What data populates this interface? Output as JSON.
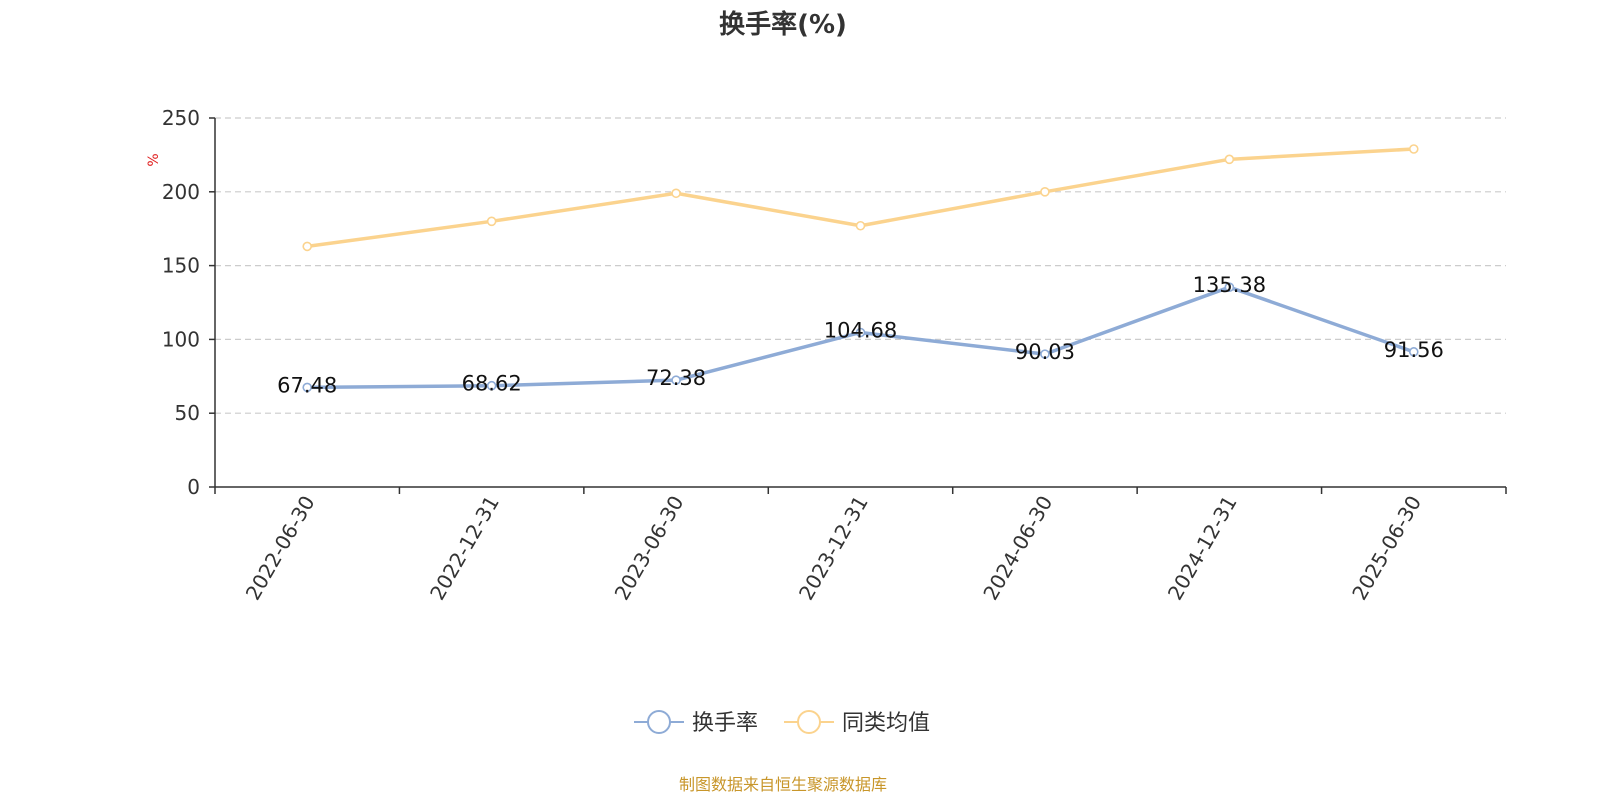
{
  "chart_data": {
    "type": "line",
    "title": "换手率(%)",
    "ylabel": "%",
    "ylim": [
      0,
      250
    ],
    "yticks": [
      0,
      50,
      100,
      150,
      200,
      250
    ],
    "grid": true,
    "legend_position": "bottom-center",
    "x": [
      "2022-06-30",
      "2022-12-31",
      "2023-06-30",
      "2023-12-31",
      "2024-06-30",
      "2024-12-31",
      "2025-06-30"
    ],
    "series": [
      {
        "name": "换手率",
        "color": "#8eabd6",
        "values": [
          67.48,
          68.62,
          72.38,
          104.68,
          90.03,
          135.38,
          91.56
        ],
        "labels": [
          "67.48",
          "68.62",
          "72.38",
          "104.68",
          "90.03",
          "135.38",
          "91.56"
        ],
        "show_labels": true
      },
      {
        "name": "同类均值",
        "color": "#fbd38e",
        "values": [
          163,
          180,
          199,
          177,
          200,
          222,
          229
        ],
        "show_labels": false
      }
    ]
  },
  "source_note": "制图数据来自恒生聚源数据库",
  "colors": {
    "axis": "#333333",
    "grid": "#cccccc",
    "ylabel": "#e02020",
    "source": "#c8962a"
  }
}
